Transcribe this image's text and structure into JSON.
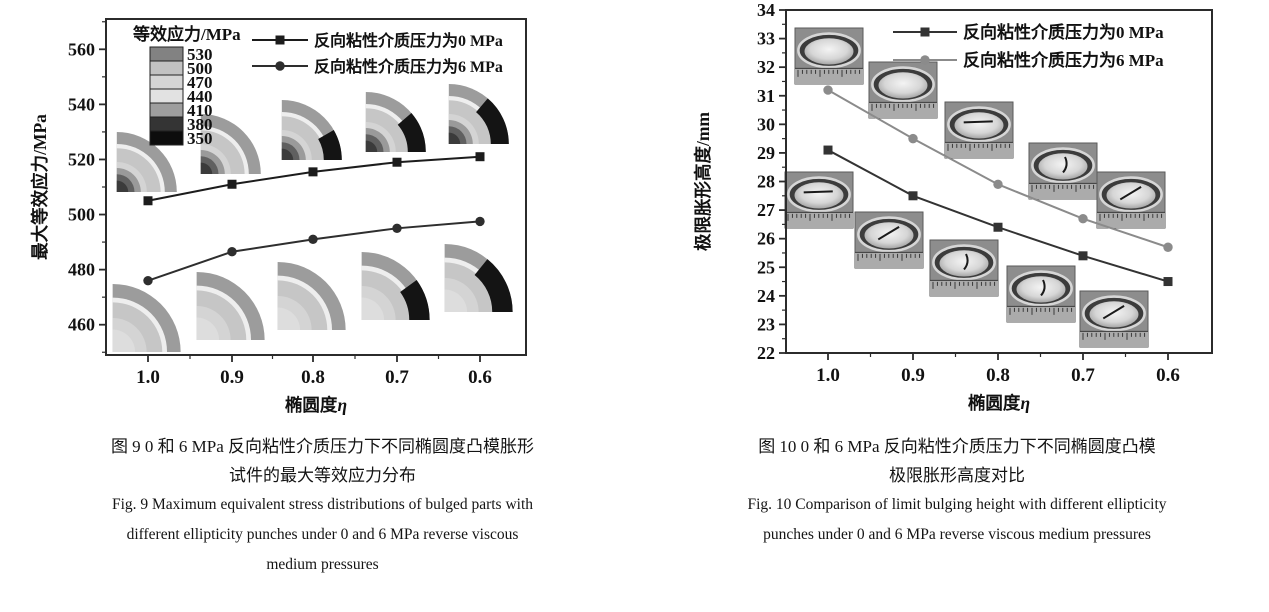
{
  "page": {
    "background": "#ffffff"
  },
  "figures": [
    {
      "name": "fig9",
      "caption_zh": [
        "图 9  0 和 6 MPa 反向粘性介质压力下不同椭圆度凸模胀形",
        "试件的最大等效应力分布"
      ],
      "caption_en": [
        "Fig. 9  Maximum equivalent stress distributions of bulged parts with",
        "different ellipticity punches under 0 and 6 MPa reverse viscous",
        "medium pressures"
      ]
    },
    {
      "name": "fig10",
      "caption_zh": [
        "图 10  0 和 6 MPa 反向粘性介质压力下不同椭圆度凸模",
        "极限胀形高度对比"
      ],
      "caption_en": [
        "Fig. 10  Comparison of limit bulging height with different ellipticity",
        "punches under 0 and 6 MPa reverse viscous medium pressures"
      ]
    }
  ],
  "chart_data": [
    {
      "type": "line",
      "title": "",
      "xlabel": "椭圆度η",
      "ylabel": "最大等效应力/MPa",
      "categories": [
        "1.0",
        "0.9",
        "0.8",
        "0.7",
        "0.6"
      ],
      "x_values": [
        1.0,
        0.9,
        0.8,
        0.7,
        0.6
      ],
      "x_axis_reversed": true,
      "ylim": [
        449,
        571
      ],
      "yticks": [
        460,
        480,
        500,
        520,
        540,
        560
      ],
      "y_minor_step": 10,
      "grid": false,
      "legend_position": "top-inside",
      "series": [
        {
          "name": "反向粘性介质压力为0 MPa",
          "marker": "square",
          "color": "#1c1c1c",
          "values": [
            505,
            511,
            515.5,
            519,
            521
          ]
        },
        {
          "name": "反向粘性介质压力为6 MPa",
          "marker": "circle",
          "color": "#2e2e2e",
          "values": [
            476,
            486.5,
            491,
            495,
            497.5
          ]
        }
      ],
      "colorbar": {
        "title": "等效应力/MPa",
        "levels": [
          "530",
          "500",
          "470",
          "440",
          "410",
          "380",
          "350"
        ],
        "colors": [
          "#828282",
          "#c2c2c2",
          "#d5d5d5",
          "#e2e2e2",
          "#9e9e9e",
          "#343434",
          "#0d0d0d"
        ]
      },
      "insets": {
        "description": "quarter-section equivalent-stress contour maps shown beside each data point (one per ellipticity, for both pressures)"
      }
    },
    {
      "type": "line",
      "title": "",
      "xlabel": "椭圆度η",
      "ylabel": "极限胀形高度/mm",
      "categories": [
        "1.0",
        "0.9",
        "0.8",
        "0.7",
        "0.6"
      ],
      "x_values": [
        1.0,
        0.9,
        0.8,
        0.7,
        0.6
      ],
      "x_axis_reversed": true,
      "ylim": [
        22,
        34
      ],
      "yticks": [
        22,
        23,
        24,
        25,
        26,
        27,
        28,
        29,
        30,
        31,
        32,
        33,
        34
      ],
      "y_minor_step": 0.5,
      "grid": false,
      "legend_position": "top-inside",
      "series": [
        {
          "name": "反向粘性介质压力为0 MPa",
          "marker": "square",
          "color": "#333333",
          "values": [
            29.1,
            27.5,
            26.4,
            25.4,
            24.5
          ]
        },
        {
          "name": "反向粘性介质压力为6 MPa",
          "marker": "circle",
          "color": "#8b8b8b",
          "values": [
            31.2,
            29.5,
            27.9,
            26.7,
            25.7
          ]
        }
      ],
      "insets": {
        "description": "photographs of the bulged specimens (dome in elliptical die over a ruler) placed beside each data point"
      }
    }
  ]
}
